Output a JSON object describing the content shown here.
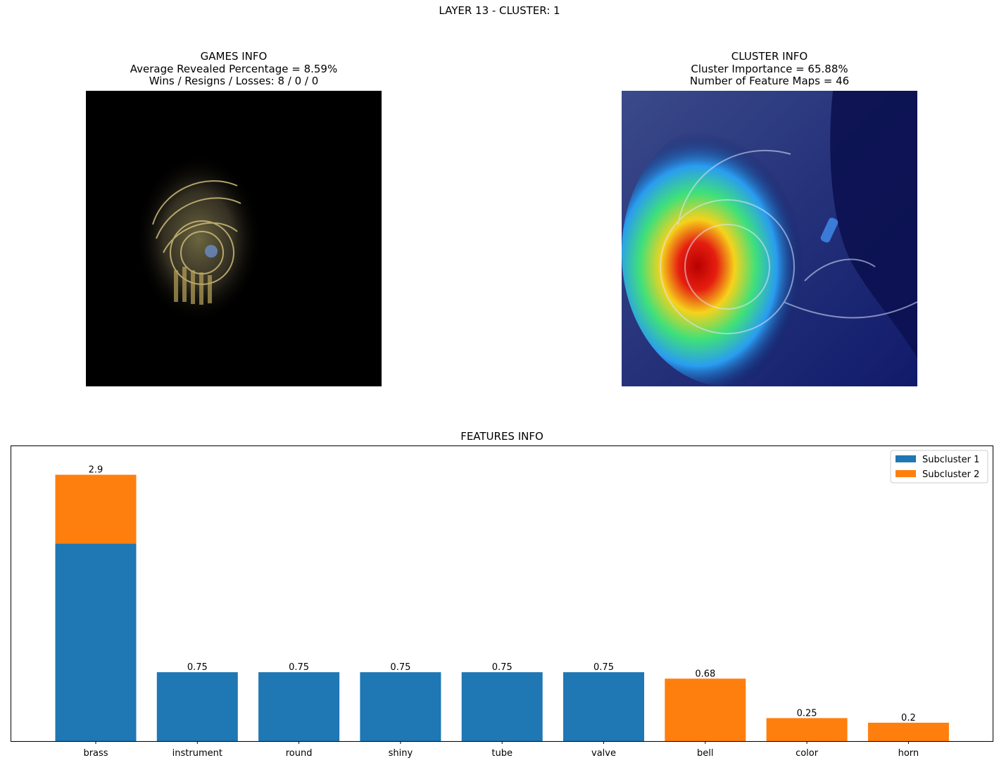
{
  "suptitle": "LAYER 13 - CLUSTER: 1",
  "games_info": {
    "title": "GAMES INFO",
    "line1": "Average Revealed Percentage = 8.59%",
    "line2": "Wins / Resigns / Losses: 8 / 0 / 0"
  },
  "cluster_info": {
    "title": "CLUSTER INFO",
    "line1": "Cluster Importance = 65.88%",
    "line2": "Number of Feature Maps = 46"
  },
  "features_title": "FEATURES INFO",
  "colors": {
    "subcluster_1": "#1f77b4",
    "subcluster_2": "#ff7f0e"
  },
  "chart_data": {
    "type": "bar",
    "title": "FEATURES INFO",
    "categories": [
      "brass",
      "instrument",
      "round",
      "shiny",
      "tube",
      "valve",
      "bell",
      "color",
      "horn"
    ],
    "series": [
      {
        "name": "Subcluster 1",
        "values": [
          2.15,
          0.75,
          0.75,
          0.75,
          0.75,
          0.75,
          0,
          0,
          0
        ]
      },
      {
        "name": "Subcluster 2",
        "values": [
          0.75,
          0,
          0,
          0,
          0,
          0,
          0.68,
          0.25,
          0.2
        ]
      }
    ],
    "totals_labels": [
      "2.9",
      "0.75",
      "0.75",
      "0.75",
      "0.75",
      "0.75",
      "0.68",
      "0.25",
      "0.2"
    ],
    "stacked": true,
    "ylim": [
      0,
      3.05
    ],
    "y_ticks_visible": false,
    "legend": "top-right",
    "grid": false
  }
}
